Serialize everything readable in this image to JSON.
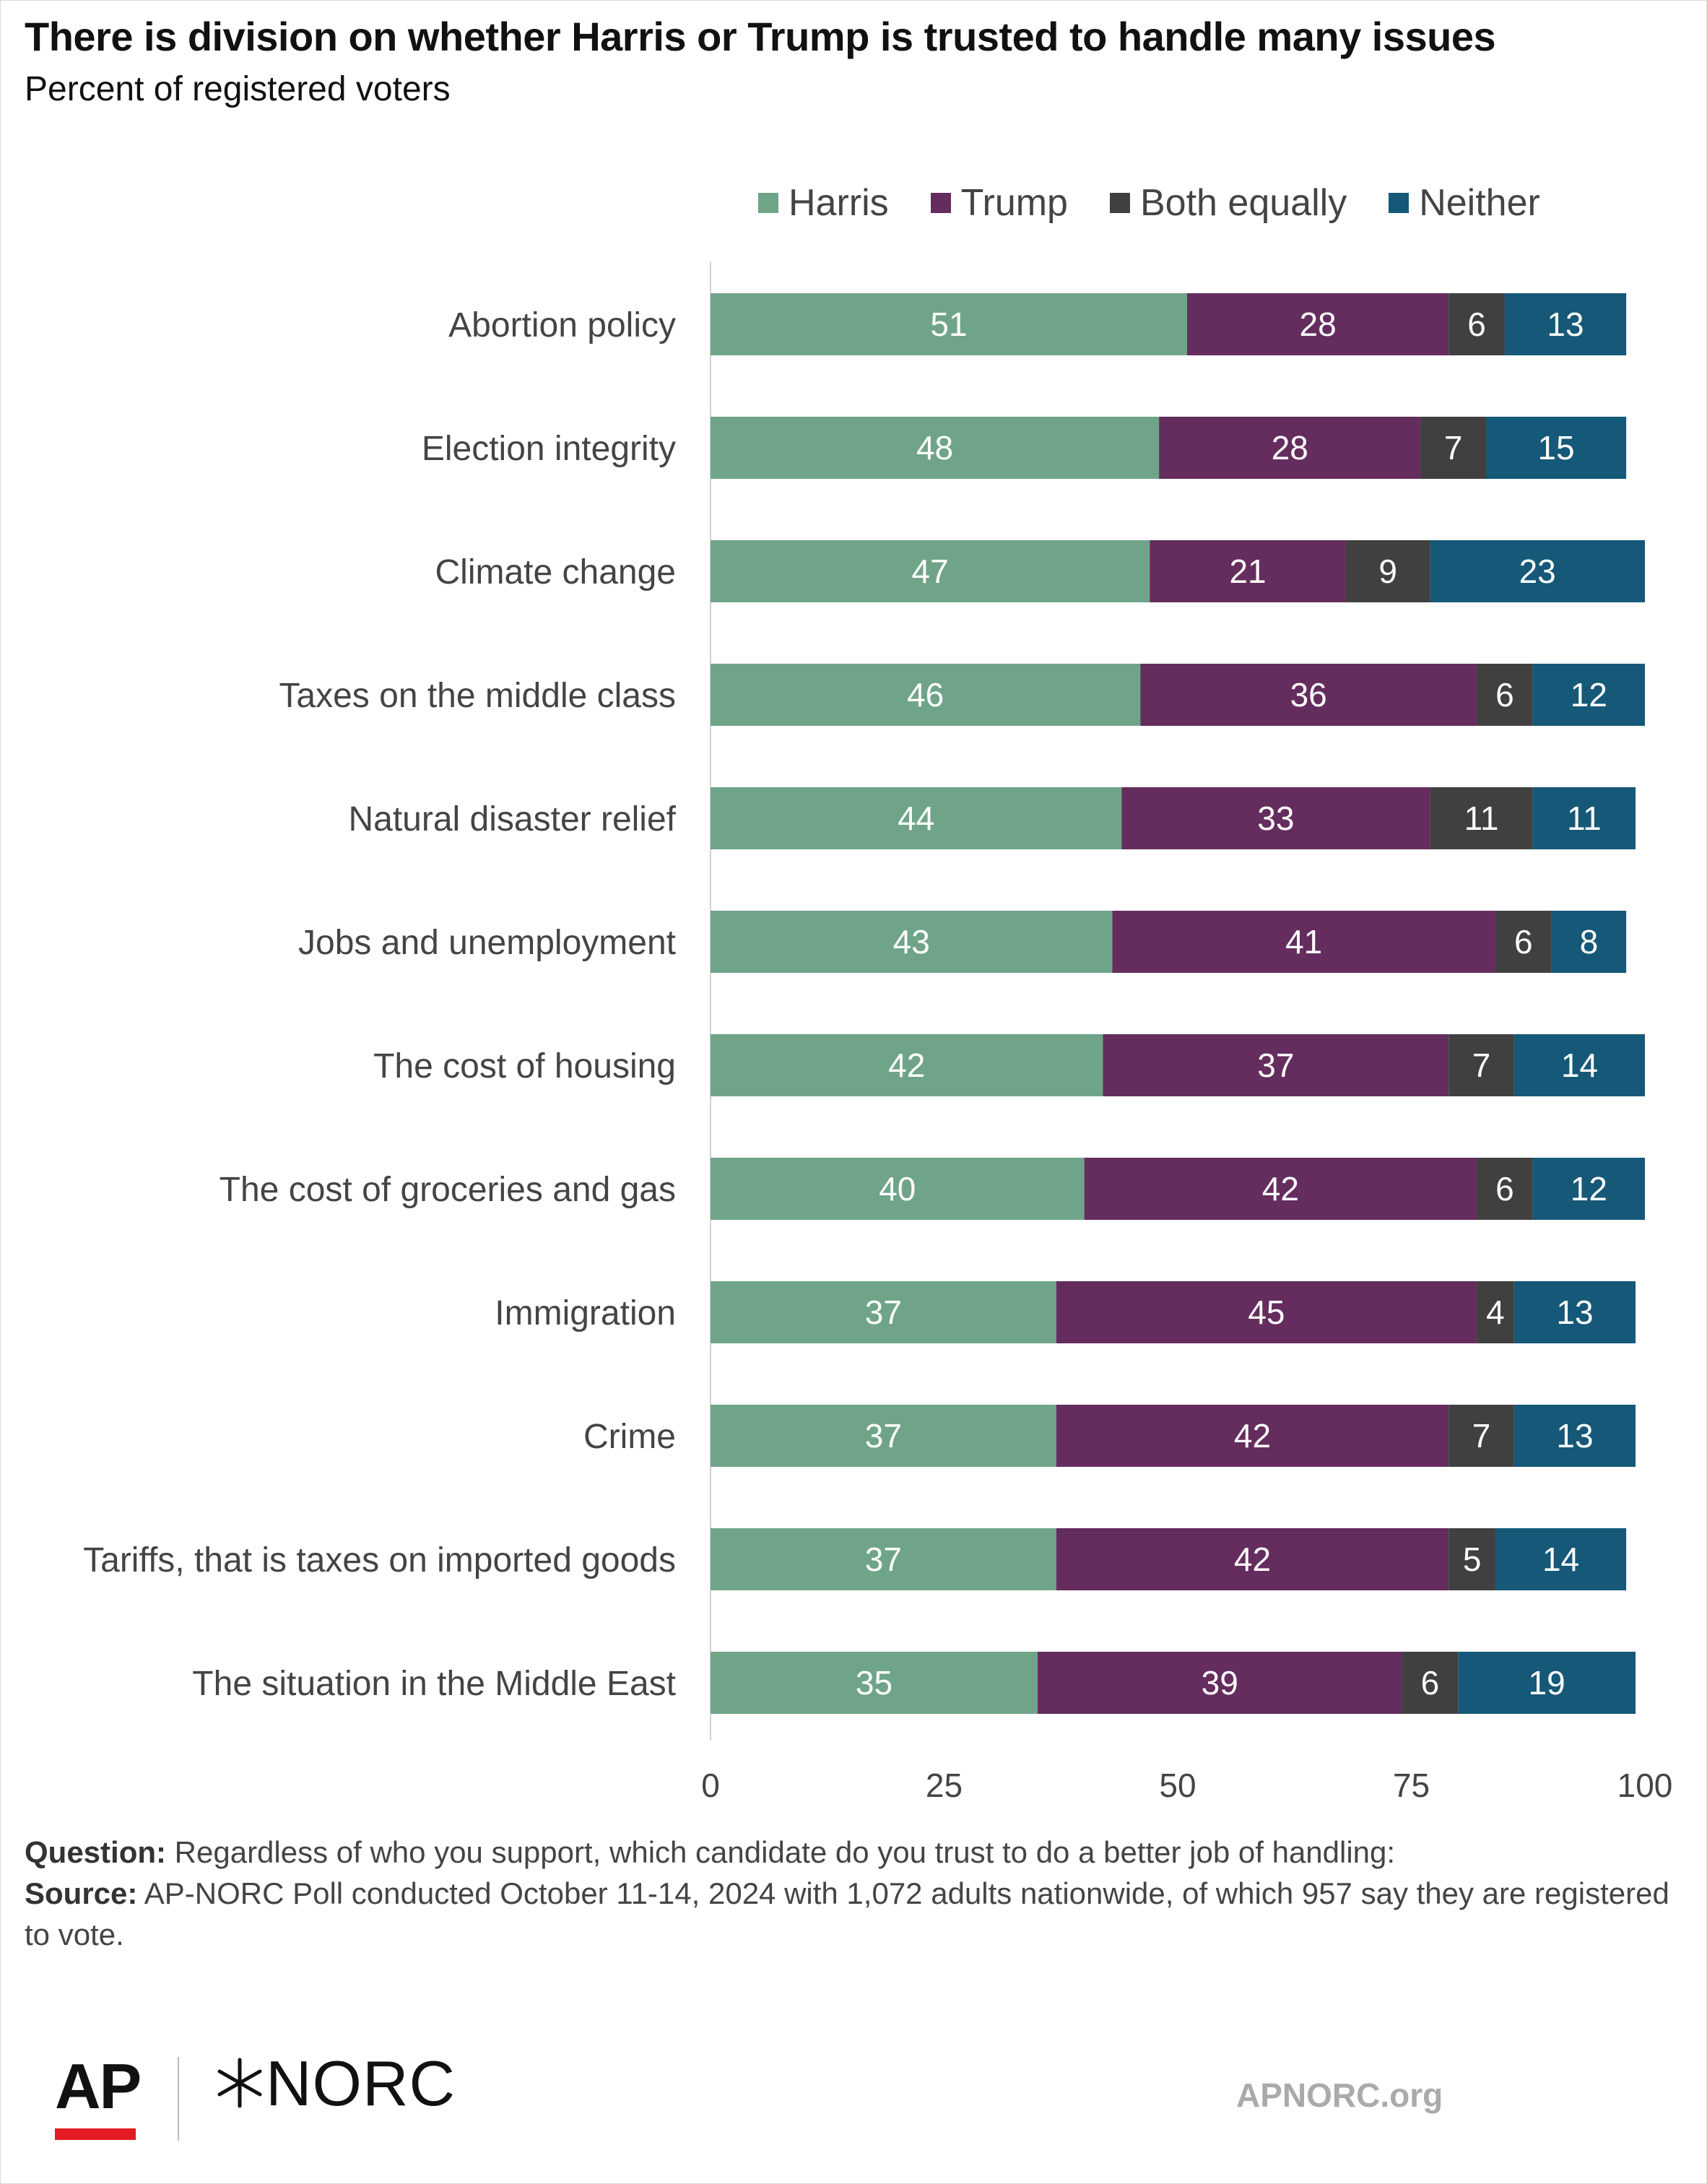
{
  "title": "There is division on whether Harris or Trump is trusted to handle many issues",
  "subtitle": "Percent of registered voters",
  "footnote": {
    "question_label": "Question:",
    "question_text": " Regardless of who you support, which candidate do you trust to do a better job of handling:",
    "source_label": "Source:",
    "source_text": " AP-NORC Poll conducted October 11-14, 2024 with 1,072 adults nationwide, of which 957 say they are registered to vote."
  },
  "logos": {
    "ap": "AP",
    "norc": "NORC",
    "url": "APNORC.org"
  },
  "chart_data": {
    "type": "bar",
    "orientation": "horizontal",
    "stacked": true,
    "xlim": [
      0,
      100
    ],
    "xticks": [
      "0",
      "25",
      "50",
      "75",
      "100"
    ],
    "grid": false,
    "legend_position": "top-right",
    "categories": [
      "Abortion policy",
      "Election integrity",
      "Climate change",
      "Taxes on the middle class",
      "Natural disaster relief",
      "Jobs and unemployment",
      "The cost of housing",
      "The cost of groceries and gas",
      "Immigration",
      "Crime",
      "Tariffs, that is taxes on imported goods",
      "The situation in the Middle East"
    ],
    "series": [
      {
        "name": "Harris",
        "color": "#6fa488",
        "values": [
          51,
          48,
          47,
          46,
          44,
          43,
          42,
          40,
          37,
          37,
          37,
          35
        ]
      },
      {
        "name": "Trump",
        "color": "#642d5e",
        "values": [
          28,
          28,
          21,
          36,
          33,
          41,
          37,
          42,
          45,
          42,
          42,
          39
        ]
      },
      {
        "name": "Both equally",
        "color": "#404040",
        "values": [
          6,
          7,
          9,
          6,
          11,
          6,
          7,
          6,
          4,
          7,
          5,
          6
        ]
      },
      {
        "name": "Neither",
        "color": "#155878",
        "values": [
          13,
          15,
          23,
          12,
          11,
          8,
          14,
          12,
          13,
          13,
          14,
          19
        ]
      }
    ]
  }
}
